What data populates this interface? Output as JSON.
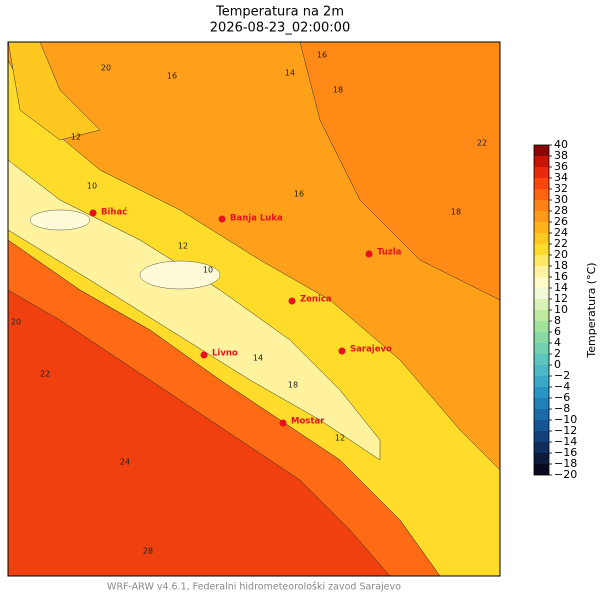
{
  "title": "Temperatura na 2m",
  "subtitle": "2026-08-23_02:00:00",
  "cities": [
    "Bihać",
    "Banja Luka",
    "Tuzla",
    "Zenica",
    "Sarajevo",
    "Livno",
    "Mostar"
  ],
  "contour_labels": [
    "20",
    "16",
    "14",
    "16",
    "18",
    "12",
    "10",
    "16",
    "18",
    "12",
    "22",
    "24",
    "28",
    "20",
    "12",
    "18",
    "10",
    "14",
    "22"
  ],
  "colorbar": {
    "label": "Temperatura (°C)",
    "ticks": [
      {
        "value": -20,
        "label": "−20"
      },
      {
        "value": -18,
        "label": "−18"
      },
      {
        "value": -16,
        "label": "−16"
      },
      {
        "value": -14,
        "label": "−14"
      },
      {
        "value": -12,
        "label": "−12"
      },
      {
        "value": -10,
        "label": "−10"
      },
      {
        "value": -8,
        "label": "−8"
      },
      {
        "value": -6,
        "label": "−6"
      },
      {
        "value": -4,
        "label": "−4"
      },
      {
        "value": -2,
        "label": "−2"
      },
      0,
      2,
      4,
      6,
      8,
      10,
      12,
      14,
      16,
      18,
      20,
      22,
      24,
      26,
      28,
      30,
      32,
      34,
      36,
      38,
      40
    ],
    "colors": [
      "#0a0a1e",
      "#0d1b3a",
      "#0f2e5c",
      "#11407a",
      "#155596",
      "#1a6aa8",
      "#2080b8",
      "#2a95c4",
      "#3aa8c8",
      "#4bb8c4",
      "#5cc6bc",
      "#70d0b0",
      "#88d9a4",
      "#a3e29c",
      "#bfeaa2",
      "#daf2b8",
      "#f2f9d8",
      "#fffbc8",
      "#fff3a0",
      "#ffe866",
      "#ffdb2a",
      "#ffc820",
      "#ffb21c",
      "#ff9a18",
      "#ff8014",
      "#ff6410",
      "#f8460c",
      "#e82a0a",
      "#c81408",
      "#8a0606"
    ]
  },
  "footer": "WRF-ARW v4.6.1, Federalni hidrometeorološki zavod Sarajevo"
}
